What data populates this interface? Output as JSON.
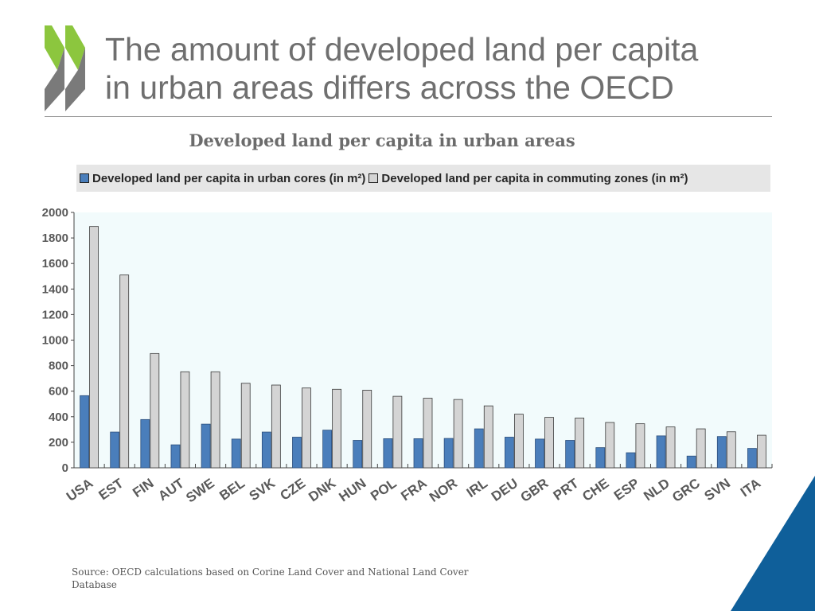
{
  "slide": {
    "title_line1": "The amount of developed land per capita",
    "title_line2": "in urban areas differs across the OECD",
    "source": "Source: OECD calculations based on Corine Land Cover and National Land Cover Database",
    "colors": {
      "title": "#6f6f6f",
      "logo_green": "#8cc63e",
      "logo_gray": "#7a7a7a",
      "corner_blue": "#0f5f9a"
    }
  },
  "chart_data": {
    "type": "bar",
    "title": "Developed land per capita in urban areas",
    "xlabel": "",
    "ylabel": "",
    "ylim": [
      0,
      2000
    ],
    "yticks": [
      0,
      200,
      400,
      600,
      800,
      1000,
      1200,
      1400,
      1600,
      1800,
      2000
    ],
    "categories": [
      "USA",
      "EST",
      "FIN",
      "AUT",
      "SWE",
      "BEL",
      "SVK",
      "CZE",
      "DNK",
      "HUN",
      "POL",
      "FRA",
      "NOR",
      "IRL",
      "DEU",
      "GBR",
      "PRT",
      "CHE",
      "ESP",
      "NLD",
      "GRC",
      "SVN",
      "ITA"
    ],
    "series": [
      {
        "name": "Developed land per capita in urban cores (in m²)",
        "color": "#4a7ebb",
        "values": [
          565,
          280,
          378,
          180,
          342,
          225,
          280,
          240,
          295,
          215,
          228,
          228,
          230,
          305,
          240,
          225,
          215,
          158,
          118,
          250,
          92,
          245,
          152
        ]
      },
      {
        "name": "Developed land per capita in commuting zones (in m²)",
        "color": "#d4d4d4",
        "values": [
          1890,
          1510,
          895,
          752,
          752,
          662,
          648,
          625,
          615,
          608,
          560,
          545,
          535,
          485,
          420,
          395,
          390,
          355,
          345,
          320,
          305,
          282,
          255
        ]
      }
    ],
    "grid": false,
    "legend_position": "top",
    "plot_background": "#f2fbfc"
  }
}
